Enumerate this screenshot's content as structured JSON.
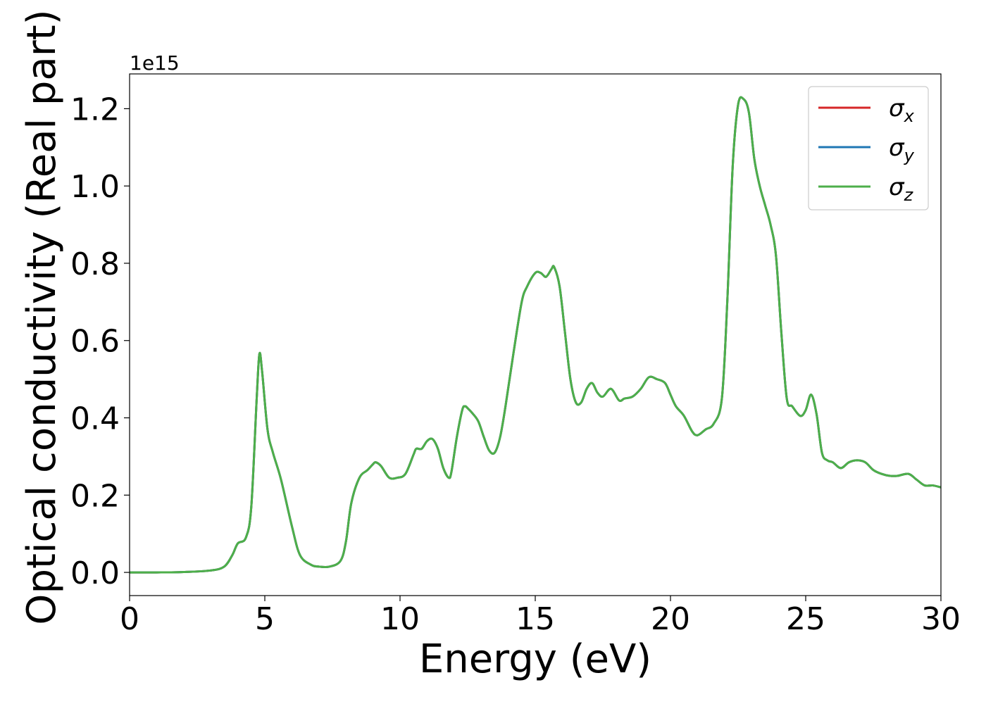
{
  "chart_data": {
    "type": "line",
    "title": "",
    "xlabel": "Energy (eV)",
    "ylabel": "Optical conductivity (Real part)",
    "y_offset_label": "1e15",
    "y_scale_factor": 1000000000000000.0,
    "xlim": [
      0,
      30
    ],
    "ylim": [
      -0.06,
      1.29
    ],
    "x_ticks": [
      0,
      5,
      10,
      15,
      20,
      25,
      30
    ],
    "x_tick_labels": [
      "0",
      "5",
      "10",
      "15",
      "20",
      "25",
      "30"
    ],
    "y_ticks": [
      0.0,
      0.2,
      0.4,
      0.6,
      0.8,
      1.0,
      1.2
    ],
    "y_tick_labels": [
      "0.0",
      "0.2",
      "0.4",
      "0.6",
      "0.8",
      "1.0",
      "1.2"
    ],
    "grid": false,
    "legend": {
      "placement": "top-right",
      "entries": [
        {
          "symbol": "σ",
          "subscript": "x",
          "color": "#d62728"
        },
        {
          "symbol": "σ",
          "subscript": "y",
          "color": "#1f77b4"
        },
        {
          "symbol": "σ",
          "subscript": "z",
          "color": "#4daf4a"
        }
      ]
    },
    "x": [
      0,
      1,
      2,
      3,
      3.5,
      3.8,
      4.0,
      4.3,
      4.5,
      4.7,
      4.8,
      4.9,
      5.1,
      5.3,
      5.6,
      6.0,
      6.3,
      6.7,
      7.0,
      7.4,
      7.8,
      8.0,
      8.2,
      8.5,
      8.8,
      9.0,
      9.1,
      9.3,
      9.6,
      9.9,
      10.2,
      10.5,
      10.6,
      10.8,
      11.0,
      11.2,
      11.4,
      11.6,
      11.8,
      11.9,
      12.1,
      12.3,
      12.4,
      12.5,
      12.7,
      12.9,
      13.1,
      13.3,
      13.5,
      13.7,
      13.9,
      14.2,
      14.5,
      14.7,
      15.0,
      15.2,
      15.4,
      15.6,
      15.7,
      15.9,
      16.1,
      16.3,
      16.5,
      16.7,
      16.9,
      17.1,
      17.3,
      17.5,
      17.8,
      18.1,
      18.3,
      18.6,
      18.9,
      19.2,
      19.5,
      19.8,
      20.0,
      20.2,
      20.5,
      20.8,
      21.0,
      21.3,
      21.6,
      21.9,
      22.1,
      22.3,
      22.5,
      22.7,
      22.9,
      23.1,
      23.3,
      23.5,
      23.7,
      23.9,
      24.1,
      24.3,
      24.5,
      24.8,
      25.0,
      25.2,
      25.4,
      25.6,
      25.8,
      26.0,
      26.3,
      26.6,
      26.9,
      27.2,
      27.5,
      27.8,
      28.1,
      28.4,
      28.8,
      29.1,
      29.4,
      29.7,
      30.0
    ],
    "series": [
      {
        "name": "σx",
        "color": "#d62728",
        "values": [
          0.0,
          0.0,
          0.001,
          0.005,
          0.015,
          0.045,
          0.075,
          0.09,
          0.17,
          0.45,
          0.565,
          0.52,
          0.37,
          0.31,
          0.24,
          0.12,
          0.045,
          0.02,
          0.015,
          0.015,
          0.03,
          0.08,
          0.18,
          0.245,
          0.265,
          0.28,
          0.285,
          0.275,
          0.245,
          0.245,
          0.255,
          0.305,
          0.32,
          0.32,
          0.34,
          0.345,
          0.32,
          0.27,
          0.245,
          0.26,
          0.35,
          0.42,
          0.43,
          0.425,
          0.41,
          0.39,
          0.35,
          0.315,
          0.31,
          0.35,
          0.43,
          0.57,
          0.7,
          0.74,
          0.775,
          0.775,
          0.765,
          0.785,
          0.79,
          0.74,
          0.62,
          0.5,
          0.44,
          0.44,
          0.475,
          0.49,
          0.465,
          0.455,
          0.475,
          0.445,
          0.45,
          0.455,
          0.475,
          0.505,
          0.5,
          0.49,
          0.46,
          0.43,
          0.405,
          0.365,
          0.355,
          0.37,
          0.385,
          0.45,
          0.7,
          1.05,
          1.21,
          1.225,
          1.19,
          1.07,
          1.0,
          0.95,
          0.9,
          0.82,
          0.62,
          0.45,
          0.43,
          0.405,
          0.42,
          0.46,
          0.41,
          0.31,
          0.29,
          0.285,
          0.27,
          0.285,
          0.29,
          0.285,
          0.265,
          0.255,
          0.25,
          0.25,
          0.255,
          0.24,
          0.225,
          0.225,
          0.22
        ]
      },
      {
        "name": "σy",
        "color": "#1f77b4",
        "values": [
          0.0,
          0.0,
          0.001,
          0.005,
          0.015,
          0.045,
          0.075,
          0.09,
          0.17,
          0.45,
          0.565,
          0.52,
          0.37,
          0.31,
          0.24,
          0.12,
          0.045,
          0.02,
          0.015,
          0.015,
          0.03,
          0.08,
          0.18,
          0.245,
          0.265,
          0.28,
          0.285,
          0.275,
          0.245,
          0.245,
          0.255,
          0.305,
          0.32,
          0.32,
          0.34,
          0.345,
          0.32,
          0.27,
          0.245,
          0.26,
          0.35,
          0.42,
          0.43,
          0.425,
          0.41,
          0.39,
          0.35,
          0.315,
          0.31,
          0.35,
          0.43,
          0.57,
          0.7,
          0.74,
          0.775,
          0.775,
          0.765,
          0.785,
          0.79,
          0.74,
          0.62,
          0.5,
          0.44,
          0.44,
          0.475,
          0.49,
          0.465,
          0.455,
          0.475,
          0.445,
          0.45,
          0.455,
          0.475,
          0.505,
          0.5,
          0.49,
          0.46,
          0.43,
          0.405,
          0.365,
          0.355,
          0.37,
          0.385,
          0.45,
          0.7,
          1.05,
          1.21,
          1.225,
          1.19,
          1.07,
          1.0,
          0.95,
          0.9,
          0.82,
          0.62,
          0.45,
          0.43,
          0.405,
          0.42,
          0.46,
          0.41,
          0.31,
          0.29,
          0.285,
          0.27,
          0.285,
          0.29,
          0.285,
          0.265,
          0.255,
          0.25,
          0.25,
          0.255,
          0.24,
          0.225,
          0.225,
          0.22
        ]
      },
      {
        "name": "σz",
        "color": "#4daf4a",
        "values": [
          0.0,
          0.0,
          0.001,
          0.005,
          0.015,
          0.045,
          0.075,
          0.09,
          0.17,
          0.45,
          0.565,
          0.52,
          0.37,
          0.31,
          0.24,
          0.12,
          0.045,
          0.02,
          0.015,
          0.015,
          0.03,
          0.08,
          0.18,
          0.245,
          0.265,
          0.28,
          0.285,
          0.275,
          0.245,
          0.245,
          0.255,
          0.305,
          0.32,
          0.32,
          0.34,
          0.345,
          0.32,
          0.27,
          0.245,
          0.26,
          0.35,
          0.42,
          0.43,
          0.425,
          0.41,
          0.39,
          0.35,
          0.315,
          0.31,
          0.35,
          0.43,
          0.57,
          0.7,
          0.74,
          0.775,
          0.775,
          0.765,
          0.785,
          0.79,
          0.74,
          0.62,
          0.5,
          0.44,
          0.44,
          0.475,
          0.49,
          0.465,
          0.455,
          0.475,
          0.445,
          0.45,
          0.455,
          0.475,
          0.505,
          0.5,
          0.49,
          0.46,
          0.43,
          0.405,
          0.365,
          0.355,
          0.37,
          0.385,
          0.45,
          0.7,
          1.05,
          1.21,
          1.225,
          1.19,
          1.07,
          1.0,
          0.95,
          0.9,
          0.82,
          0.62,
          0.45,
          0.43,
          0.405,
          0.42,
          0.46,
          0.41,
          0.31,
          0.29,
          0.285,
          0.27,
          0.285,
          0.29,
          0.285,
          0.265,
          0.255,
          0.25,
          0.25,
          0.255,
          0.24,
          0.225,
          0.225,
          0.22
        ]
      }
    ]
  }
}
